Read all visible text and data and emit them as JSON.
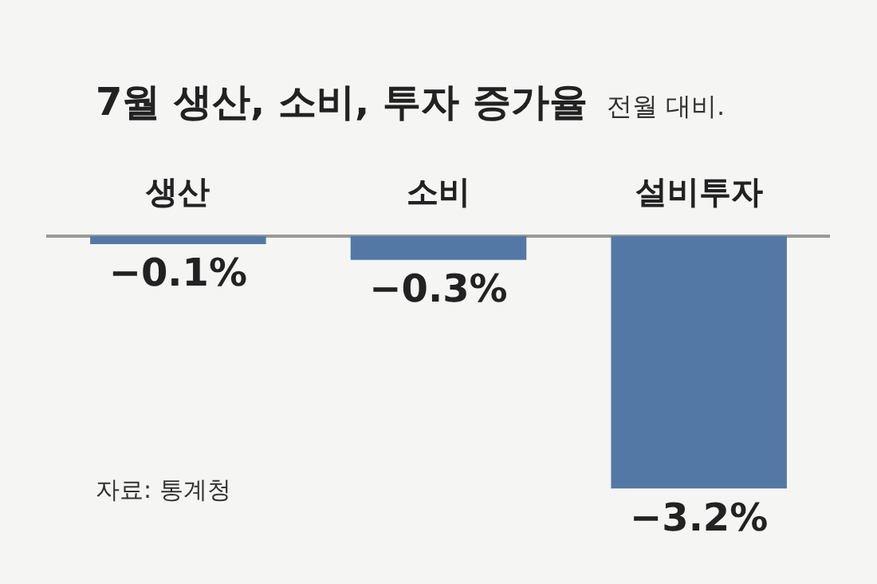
{
  "chart_data": {
    "type": "bar",
    "title": "7월 생산, 소비, 투자 증가율",
    "subtitle": "전월 대비.",
    "categories": [
      "생산",
      "소비",
      "설비투자"
    ],
    "values": [
      -0.1,
      -0.3,
      -3.2
    ],
    "value_labels": [
      "−0.1%",
      "−0.3%",
      "−3.2%"
    ],
    "color": "#5478a6",
    "annotations": [
      "자료: 통계청"
    ]
  }
}
